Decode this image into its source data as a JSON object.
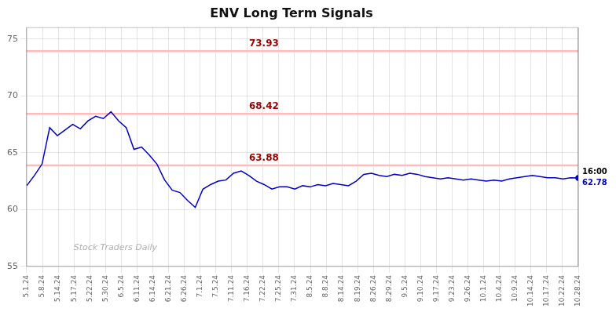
{
  "chart_data": {
    "type": "line",
    "title": "ENV Long Term Signals",
    "color": "#0000cc",
    "grid": true,
    "xlim": [
      0,
      35
    ],
    "xticks": [
      {
        "value": 0,
        "label": "5.1.24"
      },
      {
        "value": 1,
        "label": "5.8.24"
      },
      {
        "value": 2,
        "label": "5.14.24"
      },
      {
        "value": 3,
        "label": "5.17.24"
      },
      {
        "value": 4,
        "label": "5.22.24"
      },
      {
        "value": 5,
        "label": "5.30.24"
      },
      {
        "value": 6,
        "label": "6.5.24"
      },
      {
        "value": 7,
        "label": "6.11.24"
      },
      {
        "value": 8,
        "label": "6.14.24"
      },
      {
        "value": 9,
        "label": "6.21.24"
      },
      {
        "value": 10,
        "label": "6.26.24"
      },
      {
        "value": 11,
        "label": "7.1.24"
      },
      {
        "value": 12,
        "label": "7.5.24"
      },
      {
        "value": 13,
        "label": "7.11.24"
      },
      {
        "value": 14,
        "label": "7.16.24"
      },
      {
        "value": 15,
        "label": "7.22.24"
      },
      {
        "value": 16,
        "label": "7.25.24"
      },
      {
        "value": 17,
        "label": "7.31.24"
      },
      {
        "value": 18,
        "label": "8.5.24"
      },
      {
        "value": 19,
        "label": "8.8.24"
      },
      {
        "value": 20,
        "label": "8.14.24"
      },
      {
        "value": 21,
        "label": "8.19.24"
      },
      {
        "value": 22,
        "label": "8.26.24"
      },
      {
        "value": 23,
        "label": "8.29.24"
      },
      {
        "value": 24,
        "label": "9.5.24"
      },
      {
        "value": 25,
        "label": "9.10.24"
      },
      {
        "value": 26,
        "label": "9.17.24"
      },
      {
        "value": 27,
        "label": "9.23.24"
      },
      {
        "value": 28,
        "label": "9.26.24"
      },
      {
        "value": 29,
        "label": "10.1.24"
      },
      {
        "value": 30,
        "label": "10.4.24"
      },
      {
        "value": 31,
        "label": "10.9.24"
      },
      {
        "value": 32,
        "label": "10.14.24"
      },
      {
        "value": 33,
        "label": "10.17.24"
      },
      {
        "value": 34,
        "label": "10.22.24"
      },
      {
        "value": 35,
        "label": "10.28.24"
      }
    ],
    "ylim": [
      55,
      76
    ],
    "yticks": [
      55,
      60,
      65,
      70,
      75
    ],
    "values": [
      62.1,
      63.0,
      64.0,
      67.2,
      66.5,
      67.0,
      67.5,
      67.1,
      67.8,
      68.2,
      68.0,
      68.6,
      67.8,
      67.2,
      65.3,
      65.5,
      64.8,
      64.0,
      62.6,
      61.7,
      61.5,
      60.8,
      60.2,
      61.8,
      62.2,
      62.5,
      62.6,
      63.2,
      63.4,
      63.0,
      62.5,
      62.2,
      61.8,
      62.0,
      62.0,
      61.8,
      62.1,
      62.0,
      62.2,
      62.1,
      62.3,
      62.2,
      62.1,
      62.5,
      63.1,
      63.2,
      63.0,
      62.9,
      63.1,
      63.0,
      63.2,
      63.1,
      62.9,
      62.8,
      62.7,
      62.8,
      62.7,
      62.6,
      62.7,
      62.6,
      62.5,
      62.6,
      62.5,
      62.7,
      62.8,
      62.9,
      63.0,
      62.9,
      62.8,
      62.8,
      62.7,
      62.8,
      62.78
    ],
    "annotations": [
      {
        "y": 73.93,
        "label": "73.93",
        "color": "#ffbbbb",
        "text_color": "#990000"
      },
      {
        "y": 68.42,
        "label": "68.42",
        "color": "#ffbbbb",
        "text_color": "#990000"
      },
      {
        "y": 63.88,
        "label": "63.88",
        "color": "#ffbbbb",
        "text_color": "#990000"
      },
      {
        "x": 35,
        "color": "#888888"
      },
      {
        "x": 35,
        "y": 62.78,
        "label": "16:00",
        "color": "#000000"
      },
      {
        "x": 35,
        "y": 62.78,
        "label": "62.78",
        "color": "#0000cc"
      },
      {
        "label": "Stock Traders Daily",
        "color": "#b0b0b0"
      }
    ]
  }
}
